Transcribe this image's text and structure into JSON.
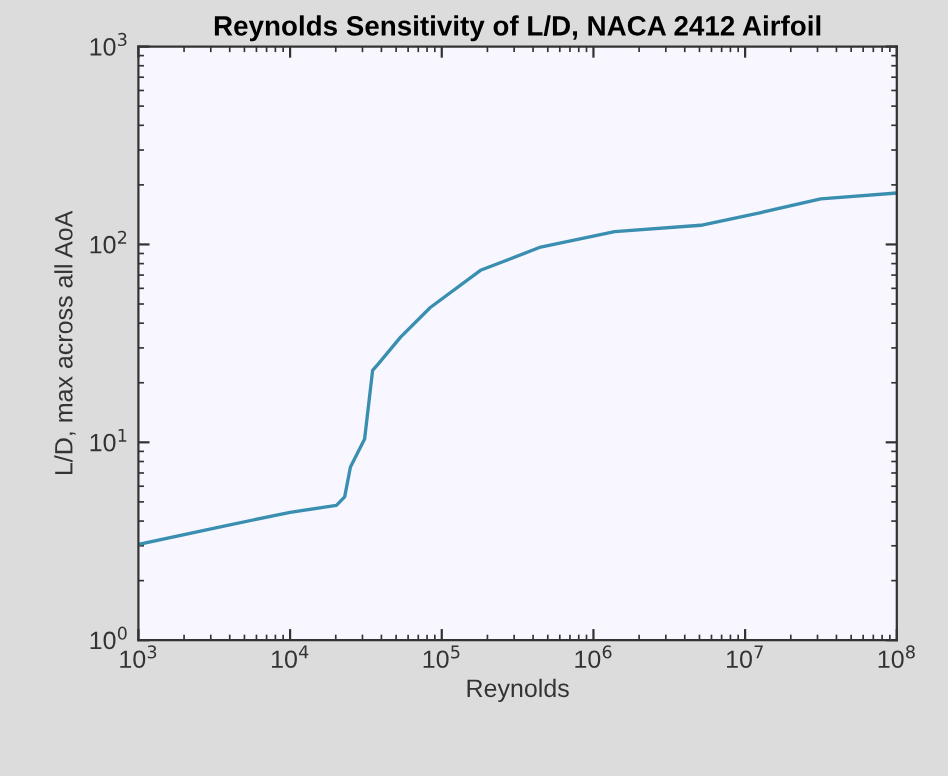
{
  "chart_data": {
    "type": "line",
    "title": "Reynolds Sensitivity of L/D, NACA 2412 Airfoil",
    "xlabel": "Reynolds",
    "ylabel": "L/D, max across all AoA",
    "log": "xy",
    "grid": false,
    "legend": false,
    "marker": "none",
    "line_style": "solid",
    "xlim": [
      1000,
      100000000
    ],
    "ylim": [
      1,
      1000
    ],
    "xticks": [
      {
        "value": 1000,
        "label": "10$^{3}$"
      },
      {
        "value": 10000,
        "label": "10$^{4}$"
      },
      {
        "value": 100000,
        "label": "10$^{5}$"
      },
      {
        "value": 1000000,
        "label": "10$^{6}$"
      },
      {
        "value": 10000000,
        "label": "10$^{7}$"
      },
      {
        "value": 100000000,
        "label": "10$^{8}$"
      }
    ],
    "yticks": [
      {
        "value": 1,
        "label": "10$^{0}$"
      },
      {
        "value": 10,
        "label": "10$^{1}$"
      },
      {
        "value": 100,
        "label": "10$^{2}$"
      },
      {
        "value": 1000,
        "label": "10$^{3}$"
      }
    ],
    "series": [
      {
        "color": "#3a8fb0",
        "x": [
          1000,
          3470,
          10000,
          20200,
          22900,
          25000,
          31000,
          35000,
          38300,
          53500,
          84000,
          180000,
          449000,
          1380000,
          5100000,
          12700000,
          31500000,
          100000000
        ],
        "values": [
          3.05,
          3.74,
          4.43,
          4.8,
          5.3,
          7.5,
          10.4,
          23.1,
          25,
          34,
          48,
          74,
          97,
          116,
          125,
          145,
          170,
          182
        ]
      }
    ]
  }
}
